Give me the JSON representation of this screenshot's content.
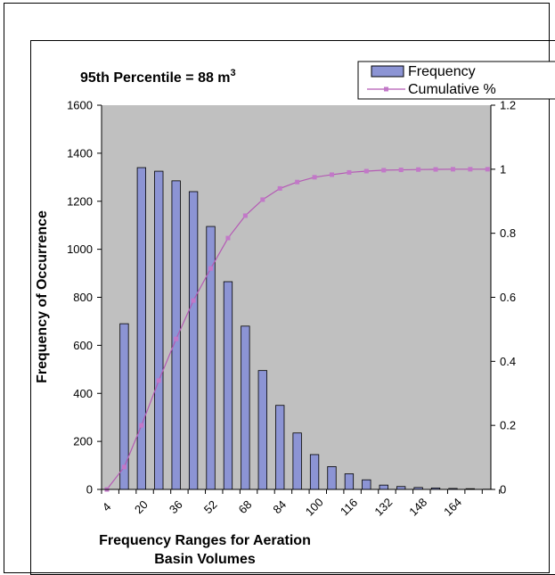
{
  "chart_data": {
    "type": "bar",
    "title": "95th Percentile = 88 m",
    "title_superscript": "3",
    "xlabel_line1": "Frequency Ranges for Aeration",
    "xlabel_line2": "Basin Volumes",
    "ylabel": "Frequency of Occurrence",
    "ylim": [
      0,
      1600
    ],
    "y2lim": [
      0,
      1.2
    ],
    "y_ticks": [
      0,
      200,
      400,
      600,
      800,
      1000,
      1200,
      1400,
      1600
    ],
    "y2_ticks": [
      "0",
      "0.2",
      "0.4",
      "0.6",
      "0.8",
      "1",
      "1.2"
    ],
    "x_tick_labels": [
      "4",
      "20",
      "36",
      "52",
      "68",
      "84",
      "100",
      "116",
      "132",
      "148",
      "164"
    ],
    "grid": false,
    "legend_position": "top-right",
    "colors": {
      "plot_bg": "#c0c0c0",
      "bar": "#8c94d4",
      "line": "#b45ab4",
      "marker": "#c278c8"
    },
    "series": [
      {
        "name": "Frequency",
        "type": "bar",
        "values": [
          0,
          690,
          1340,
          1325,
          1285,
          1240,
          1095,
          865,
          680,
          495,
          350,
          235,
          145,
          95,
          65,
          40,
          18,
          12,
          8,
          6,
          4,
          3,
          1
        ]
      },
      {
        "name": "Cumulative %",
        "type": "line",
        "axis": "secondary",
        "values": [
          0,
          0.07,
          0.2,
          0.34,
          0.47,
          0.59,
          0.69,
          0.785,
          0.855,
          0.905,
          0.94,
          0.96,
          0.975,
          0.983,
          0.99,
          0.994,
          0.997,
          0.998,
          0.999,
          0.9995,
          1.0,
          1.0,
          1.0
        ]
      }
    ]
  }
}
